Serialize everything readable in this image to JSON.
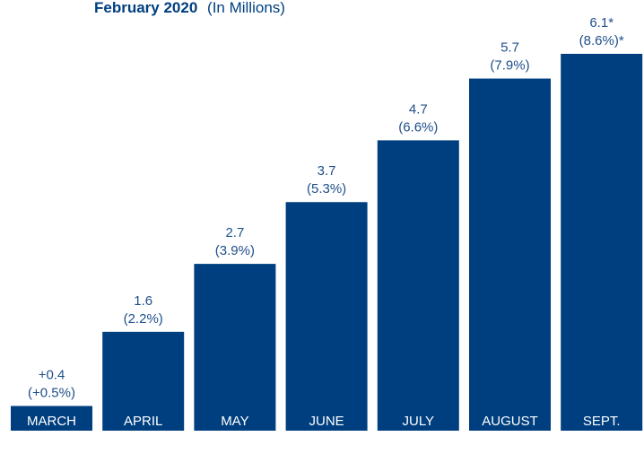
{
  "chart_data": {
    "type": "bar",
    "title": "February 2020",
    "subtitle": "(In Millions)",
    "categories": [
      "MARCH",
      "APRIL",
      "MAY",
      "JUNE",
      "JULY",
      "AUGUST",
      "SEPT."
    ],
    "values": [
      0.4,
      1.6,
      2.7,
      3.7,
      4.7,
      5.7,
      6.1
    ],
    "value_labels": [
      "+0.4",
      "1.6",
      "2.7",
      "3.7",
      "4.7",
      "5.7",
      "6.1*"
    ],
    "percent_labels": [
      "(+0.5%)",
      "(2.2%)",
      "(3.9%)",
      "(5.3%)",
      "(6.6%)",
      "(7.9%)",
      "(8.6%)*"
    ],
    "ylim": [
      0,
      6.1
    ],
    "grid": false,
    "legend": "none",
    "bar_color": "#003f7f",
    "text_color": "#1e4f8a",
    "category_text_color": "#ffffff"
  }
}
